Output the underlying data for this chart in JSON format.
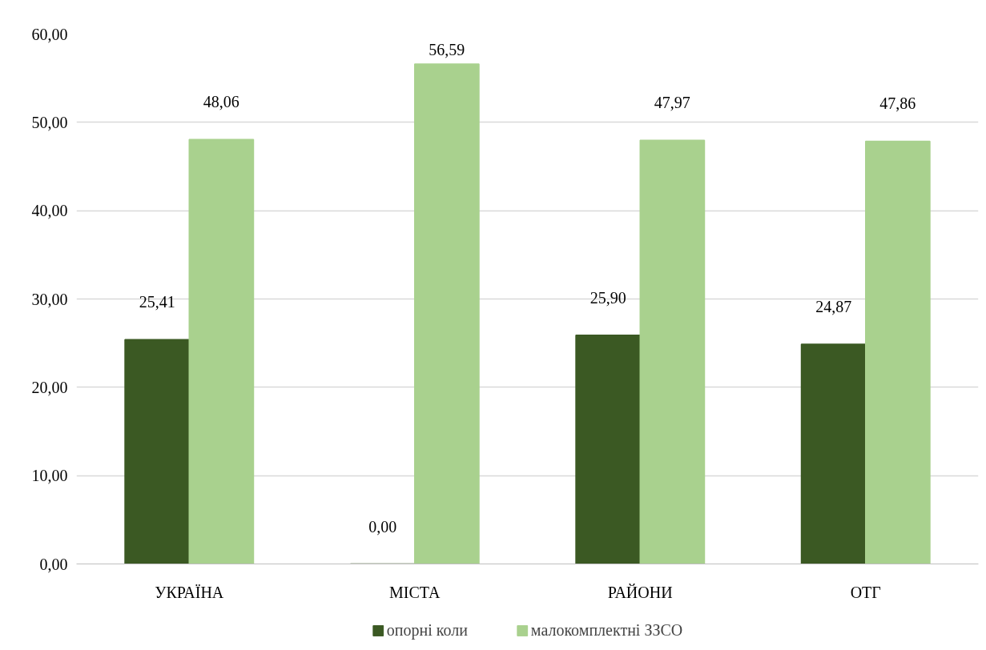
{
  "chart_data": {
    "type": "bar",
    "categories": [
      "УКРАЇНА",
      "МІСТА",
      "РАЙОНИ",
      "ОТГ"
    ],
    "series": [
      {
        "name": "опорні коли",
        "color": "#3b5923",
        "values": [
          25.41,
          0.0,
          25.9,
          24.87
        ],
        "value_labels": [
          "25,41",
          "0,00",
          "25,90",
          "24,87"
        ]
      },
      {
        "name": "малокомплектні ЗЗСО",
        "color": "#a9d18e",
        "values": [
          48.06,
          56.59,
          47.97,
          47.86
        ],
        "value_labels": [
          "48,06",
          "56,59",
          "47,97",
          "47,86"
        ]
      }
    ],
    "ylim": [
      0,
      60
    ],
    "yticks": [
      {
        "value": 0,
        "label": "0,00"
      },
      {
        "value": 10,
        "label": "10,00"
      },
      {
        "value": 20,
        "label": "20,00"
      },
      {
        "value": 30,
        "label": "30,00"
      },
      {
        "value": 40,
        "label": "40,00"
      },
      {
        "value": 50,
        "label": "50,00"
      },
      {
        "value": 60,
        "label": "60,00"
      }
    ],
    "grid": "y",
    "legend": "bottom"
  }
}
